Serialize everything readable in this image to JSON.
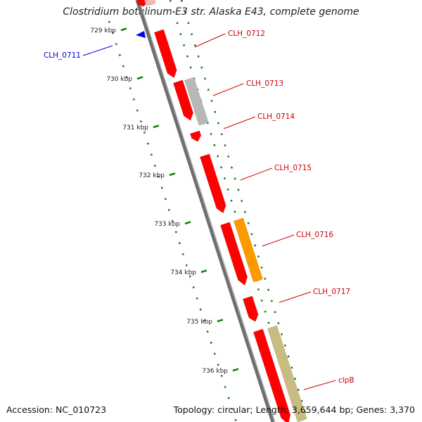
{
  "title": "Clostridium botulinum E3 str. Alaska E43, complete genome",
  "accession_text": "Accession: NC_010723",
  "topology_text": "Topology: circular; Length: 3,659,644 bp; Genes: 3,370",
  "colors": {
    "gene_red": "#ff0000",
    "gene_gray": "#b8b8b8",
    "gene_orange": "#ff9900",
    "gene_khaki": "#c8bd80",
    "label_red": "#cc0000",
    "label_blue": "#0000cc",
    "tick_green": "#1a7a1a",
    "backbone": "#8a8a8a"
  },
  "kbp_ticks": [
    {
      "value": 729,
      "label": "729 kbp"
    },
    {
      "value": 730,
      "label": "730 kbp"
    },
    {
      "value": 731,
      "label": "731 kbp"
    },
    {
      "value": 732,
      "label": "732 kbp"
    },
    {
      "value": 733,
      "label": "733 kbp"
    },
    {
      "value": 734,
      "label": "734 kbp"
    },
    {
      "value": 735,
      "label": "735 kbp"
    },
    {
      "value": 736,
      "label": "736 kbp"
    }
  ],
  "gene_labels": [
    {
      "name": "CLH_0711",
      "color": "blue"
    },
    {
      "name": "CLH_0712",
      "color": "red"
    },
    {
      "name": "CLH_0713",
      "color": "red"
    },
    {
      "name": "CLH_0714",
      "color": "red"
    },
    {
      "name": "CLH_0715",
      "color": "red"
    },
    {
      "name": "CLH_0716",
      "color": "red"
    },
    {
      "name": "CLH_0717",
      "color": "red"
    },
    {
      "name": "clpB",
      "color": "red"
    }
  ]
}
